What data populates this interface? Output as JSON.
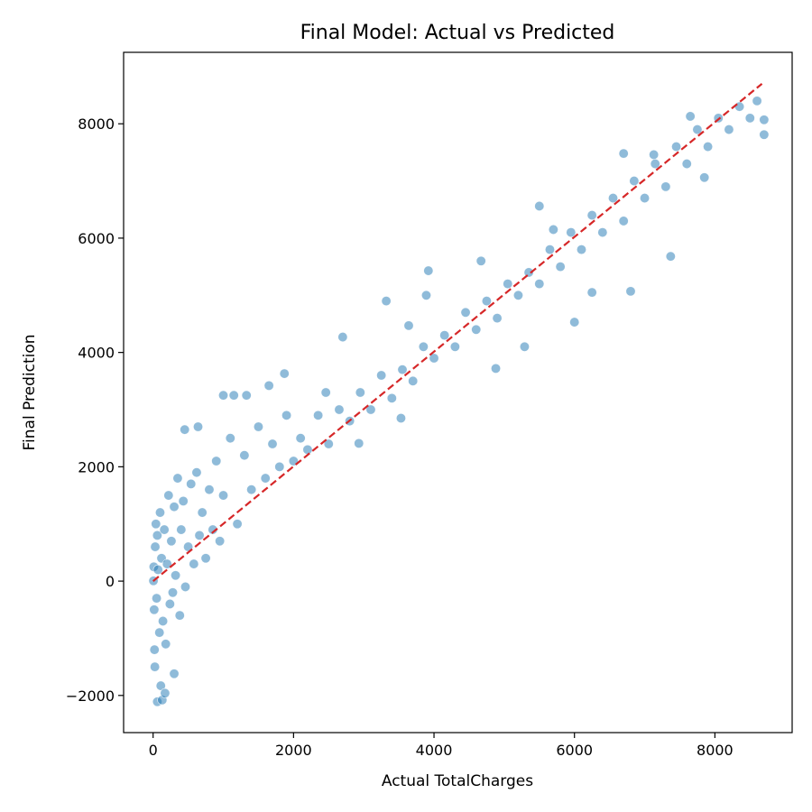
{
  "chart_data": {
    "type": "scatter",
    "title": "Final Model: Actual vs Predicted",
    "xlabel": "Actual TotalCharges",
    "ylabel": "Final Prediction",
    "xlim": [
      -420,
      9100
    ],
    "ylim": [
      -2650,
      9250
    ],
    "x_ticks": [
      0,
      2000,
      4000,
      6000,
      8000
    ],
    "x_tick_labels": [
      "0",
      "2000",
      "4000",
      "6000",
      "8000"
    ],
    "y_ticks": [
      -2000,
      0,
      2000,
      4000,
      6000,
      8000
    ],
    "y_tick_labels": [
      "−2000",
      "0",
      "2000",
      "4000",
      "6000",
      "8000"
    ],
    "grid": false,
    "legend": "none",
    "point_color": "#1f77b4",
    "point_opacity": 0.5,
    "reference_line": {
      "x": [
        0,
        8670
      ],
      "y": [
        0,
        8700
      ],
      "color": "#d62728",
      "style": "dashed"
    },
    "outliers": [
      [
        450,
        2650
      ],
      [
        640,
        2700
      ],
      [
        1000,
        3250
      ],
      [
        1150,
        3250
      ],
      [
        1330,
        3250
      ],
      [
        1650,
        3420
      ],
      [
        1870,
        3630
      ],
      [
        2460,
        3300
      ],
      [
        2700,
        4270
      ],
      [
        3320,
        4900
      ],
      [
        3640,
        4470
      ],
      [
        3890,
        5000
      ],
      [
        3920,
        5430
      ],
      [
        4670,
        5600
      ],
      [
        5500,
        6560
      ],
      [
        5700,
        6150
      ],
      [
        6000,
        4530
      ],
      [
        6250,
        5050
      ],
      [
        6800,
        5070
      ],
      [
        6700,
        7480
      ],
      [
        7130,
        7460
      ],
      [
        7370,
        5680
      ],
      [
        7650,
        8130
      ],
      [
        7850,
        7060
      ],
      [
        8700,
        8070
      ],
      [
        8700,
        7810
      ],
      [
        60,
        -2110
      ],
      [
        130,
        -2080
      ],
      [
        110,
        -1830
      ],
      [
        170,
        -1960
      ],
      [
        300,
        -1620
      ],
      [
        2930,
        2410
      ],
      [
        3530,
        2850
      ],
      [
        4880,
        3720
      ],
      [
        5290,
        4100
      ]
    ],
    "series": [
      {
        "points": [
          [
            5,
            5
          ],
          [
            10,
            250
          ],
          [
            15,
            -500
          ],
          [
            20,
            -1200
          ],
          [
            25,
            -1500
          ],
          [
            30,
            600
          ],
          [
            40,
            1000
          ],
          [
            50,
            -300
          ],
          [
            60,
            800
          ],
          [
            70,
            200
          ],
          [
            90,
            -900
          ],
          [
            100,
            1200
          ],
          [
            120,
            400
          ],
          [
            140,
            -700
          ],
          [
            160,
            900
          ],
          [
            180,
            -1100
          ],
          [
            200,
            300
          ],
          [
            220,
            1500
          ],
          [
            240,
            -400
          ],
          [
            260,
            700
          ],
          [
            280,
            -200
          ],
          [
            300,
            1300
          ],
          [
            320,
            100
          ],
          [
            350,
            1800
          ],
          [
            380,
            -600
          ],
          [
            400,
            900
          ],
          [
            430,
            1400
          ],
          [
            460,
            -100
          ],
          [
            500,
            600
          ],
          [
            540,
            1700
          ],
          [
            580,
            300
          ],
          [
            620,
            1900
          ],
          [
            660,
            800
          ],
          [
            700,
            1200
          ],
          [
            750,
            400
          ],
          [
            800,
            1600
          ],
          [
            850,
            900
          ],
          [
            900,
            2100
          ],
          [
            950,
            700
          ],
          [
            1000,
            1500
          ],
          [
            1100,
            2500
          ],
          [
            1200,
            1000
          ],
          [
            1300,
            2200
          ],
          [
            1400,
            1600
          ],
          [
            1500,
            2700
          ],
          [
            1600,
            1800
          ],
          [
            1700,
            2400
          ],
          [
            1800,
            2000
          ],
          [
            1900,
            2900
          ],
          [
            2000,
            2100
          ],
          [
            2100,
            2500
          ],
          [
            2200,
            2300
          ],
          [
            2350,
            2900
          ],
          [
            2500,
            2400
          ],
          [
            2650,
            3000
          ],
          [
            2800,
            2800
          ],
          [
            2950,
            3300
          ],
          [
            3100,
            3000
          ],
          [
            3250,
            3600
          ],
          [
            3400,
            3200
          ],
          [
            3550,
            3700
          ],
          [
            3700,
            3500
          ],
          [
            3850,
            4100
          ],
          [
            4000,
            3900
          ],
          [
            4150,
            4300
          ],
          [
            4300,
            4100
          ],
          [
            4450,
            4700
          ],
          [
            4600,
            4400
          ],
          [
            4750,
            4900
          ],
          [
            4900,
            4600
          ],
          [
            5050,
            5200
          ],
          [
            5200,
            5000
          ],
          [
            5350,
            5400
          ],
          [
            5500,
            5200
          ],
          [
            5650,
            5800
          ],
          [
            5800,
            5500
          ],
          [
            5950,
            6100
          ],
          [
            6100,
            5800
          ],
          [
            6250,
            6400
          ],
          [
            6400,
            6100
          ],
          [
            6550,
            6700
          ],
          [
            6700,
            6300
          ],
          [
            6850,
            7000
          ],
          [
            7000,
            6700
          ],
          [
            7150,
            7300
          ],
          [
            7300,
            6900
          ],
          [
            7450,
            7600
          ],
          [
            7600,
            7300
          ],
          [
            7750,
            7900
          ],
          [
            7900,
            7600
          ],
          [
            8050,
            8100
          ],
          [
            8200,
            7900
          ],
          [
            8350,
            8300
          ],
          [
            8500,
            8100
          ],
          [
            8600,
            8400
          ]
        ]
      }
    ]
  }
}
